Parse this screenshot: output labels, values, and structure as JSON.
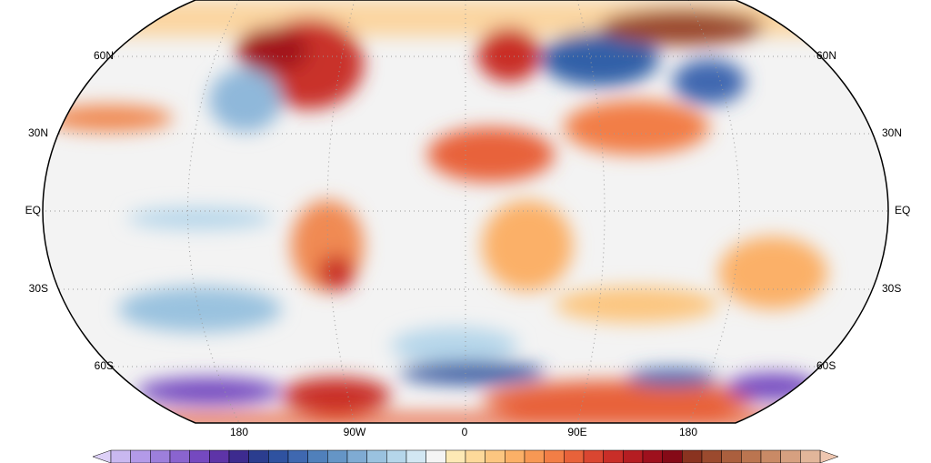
{
  "map": {
    "lat_labels": [
      "60N",
      "30N",
      "EQ",
      "30S",
      "60S"
    ],
    "lon_labels": [
      "180",
      "90W",
      "0",
      "90E",
      "180"
    ],
    "colorbar": {
      "colors": [
        "#c9b8f0",
        "#b39ae8",
        "#9d7fdc",
        "#8a64cf",
        "#7549c0",
        "#5e34a8",
        "#3d2b8f",
        "#2b3d8f",
        "#2f52a0",
        "#3f68b0",
        "#5080bb",
        "#6595c6",
        "#7fabd3",
        "#9ac2df",
        "#b5d6ea",
        "#d2e7f3",
        "#f4f4f4",
        "#fde9b5",
        "#fdd99a",
        "#fcc680",
        "#fbb067",
        "#f79854",
        "#f27e46",
        "#e8623a",
        "#da4631",
        "#c92e28",
        "#b51d22",
        "#9e101d",
        "#850a17",
        "#8a3320",
        "#9b4a2e",
        "#ab5f3e",
        "#bb7550",
        "#c98a66",
        "#d6a080",
        "#e2b69a"
      ]
    }
  }
}
